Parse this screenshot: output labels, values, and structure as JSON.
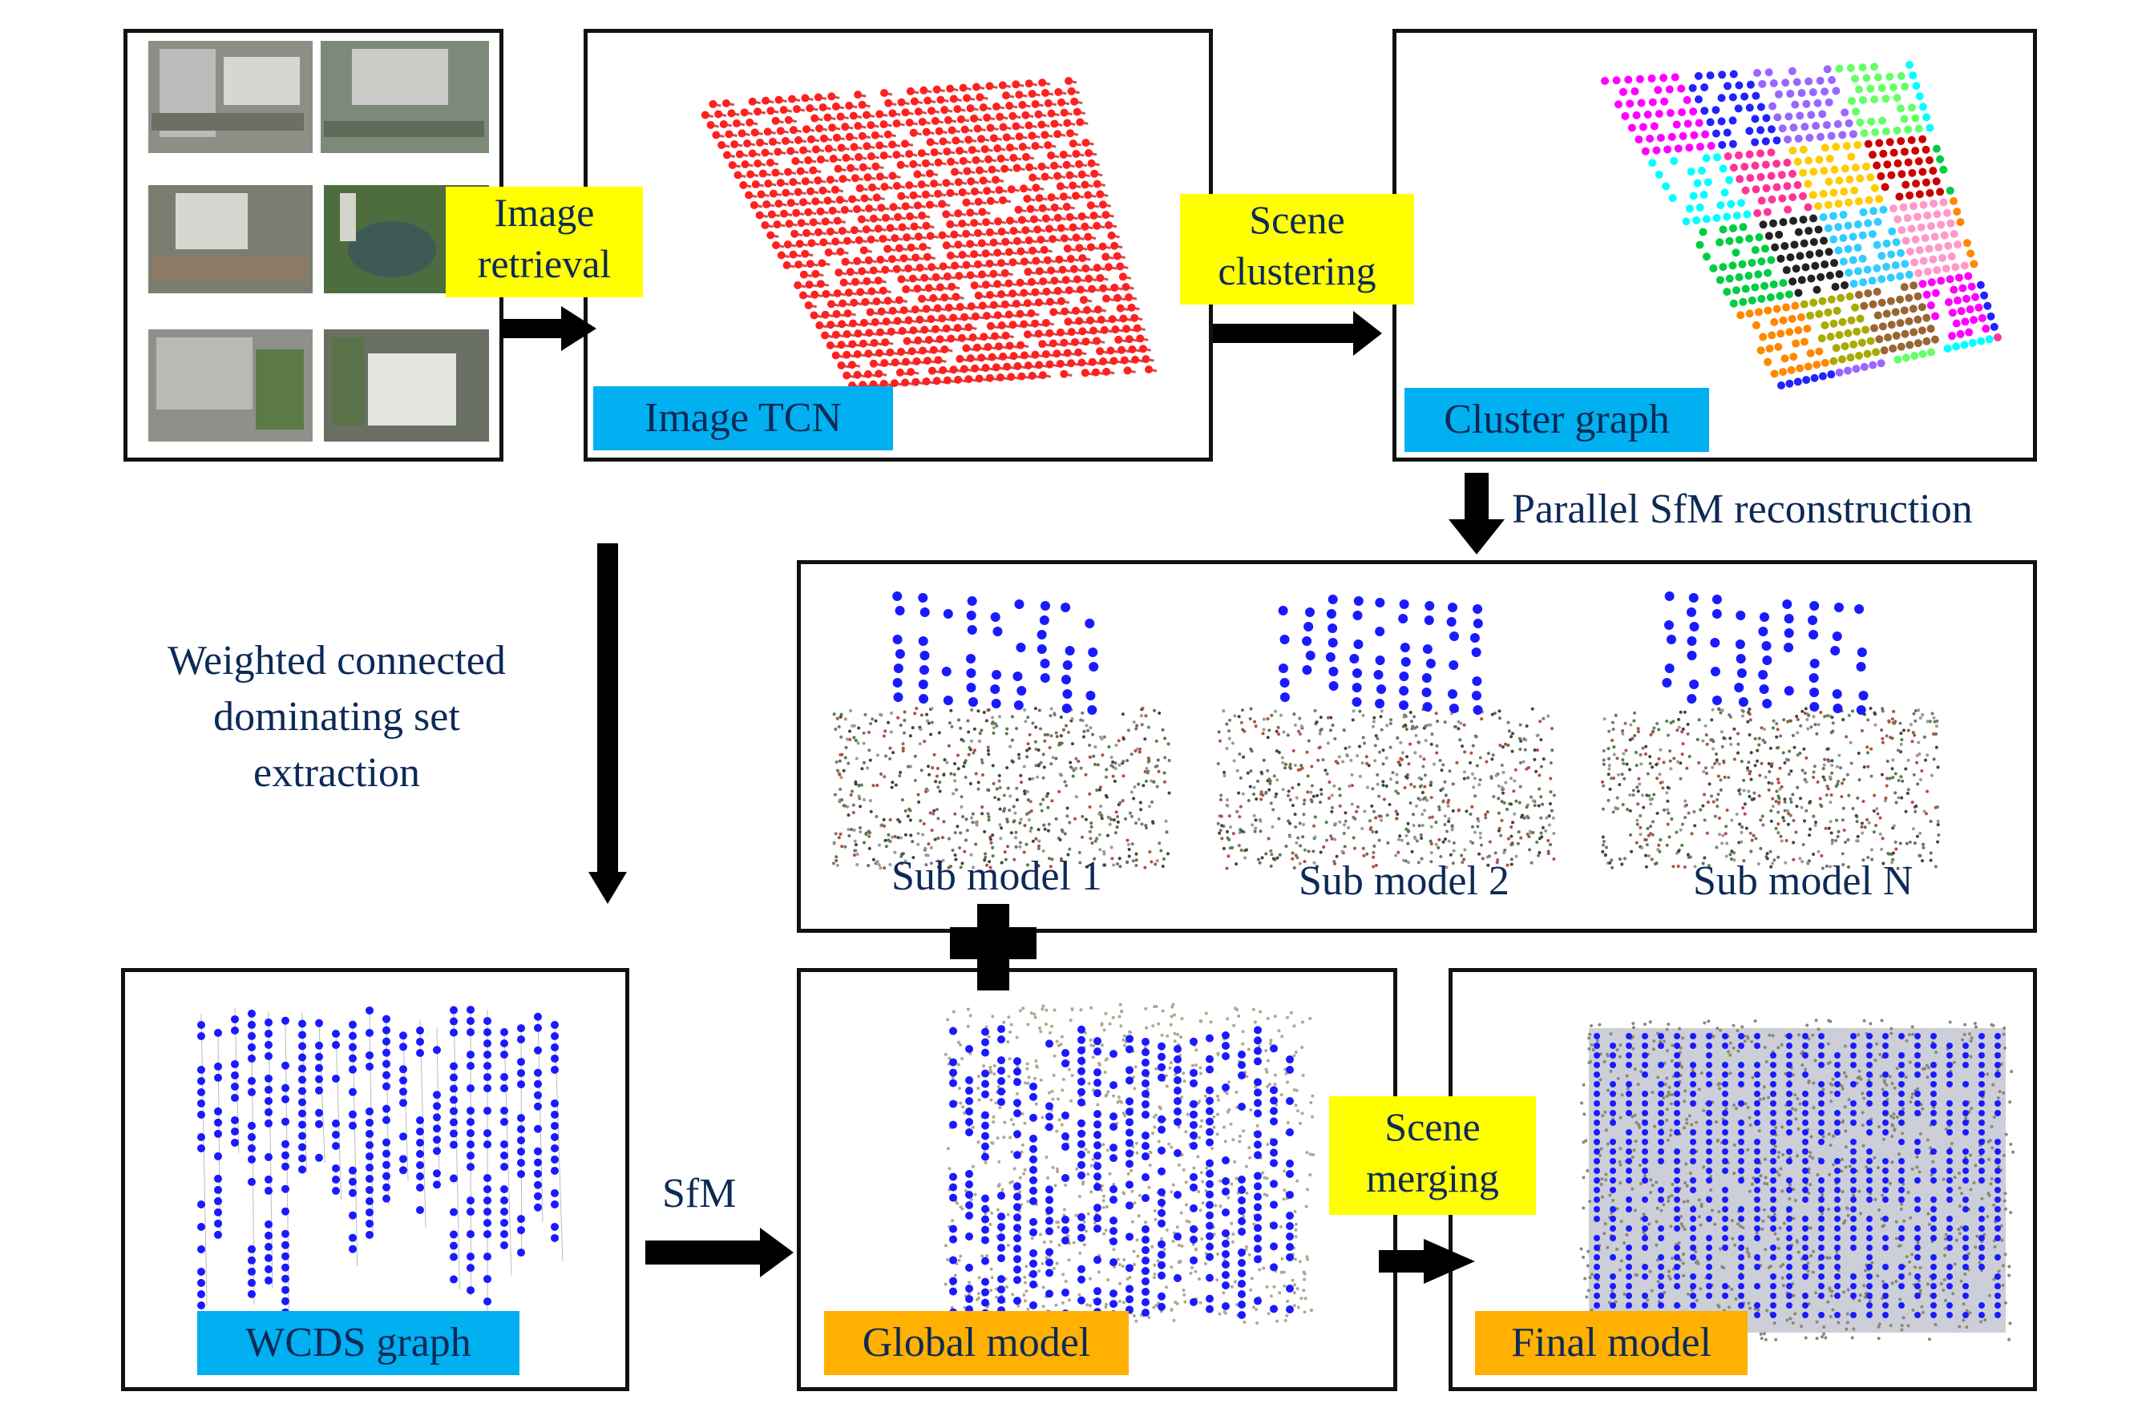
{
  "colors": {
    "panel_border": "#111111",
    "tag_blue": "#00b0f0",
    "tag_orange": "#ffb000",
    "tag_yellow": "#ffff00",
    "text": "#0d2a57",
    "node_red": "#ff2020",
    "node_blue": "#1a1aff"
  },
  "steps": {
    "image_retrieval": [
      "Image",
      "retrieval"
    ],
    "scene_clustering": [
      "Scene",
      "clustering"
    ],
    "parallel_sfm": "Parallel SfM reconstruction",
    "wcds_extraction": [
      "Weighted connected",
      "dominating set",
      "extraction"
    ],
    "sfm": "SfM",
    "scene_merging": [
      "Scene",
      "merging"
    ]
  },
  "panels": {
    "image_tcn": "Image TCN",
    "cluster_graph": "Cluster graph",
    "wcds_graph": "WCDS graph",
    "global_model": "Global model",
    "final_model": "Final model"
  },
  "sub_models": [
    "Sub model 1",
    "Sub model 2",
    "Sub model N"
  ],
  "icons": {
    "input_images": "aerial-photo-grid",
    "plus": "plus-sign-icon",
    "arrow": "thick-black-arrow-icon"
  }
}
